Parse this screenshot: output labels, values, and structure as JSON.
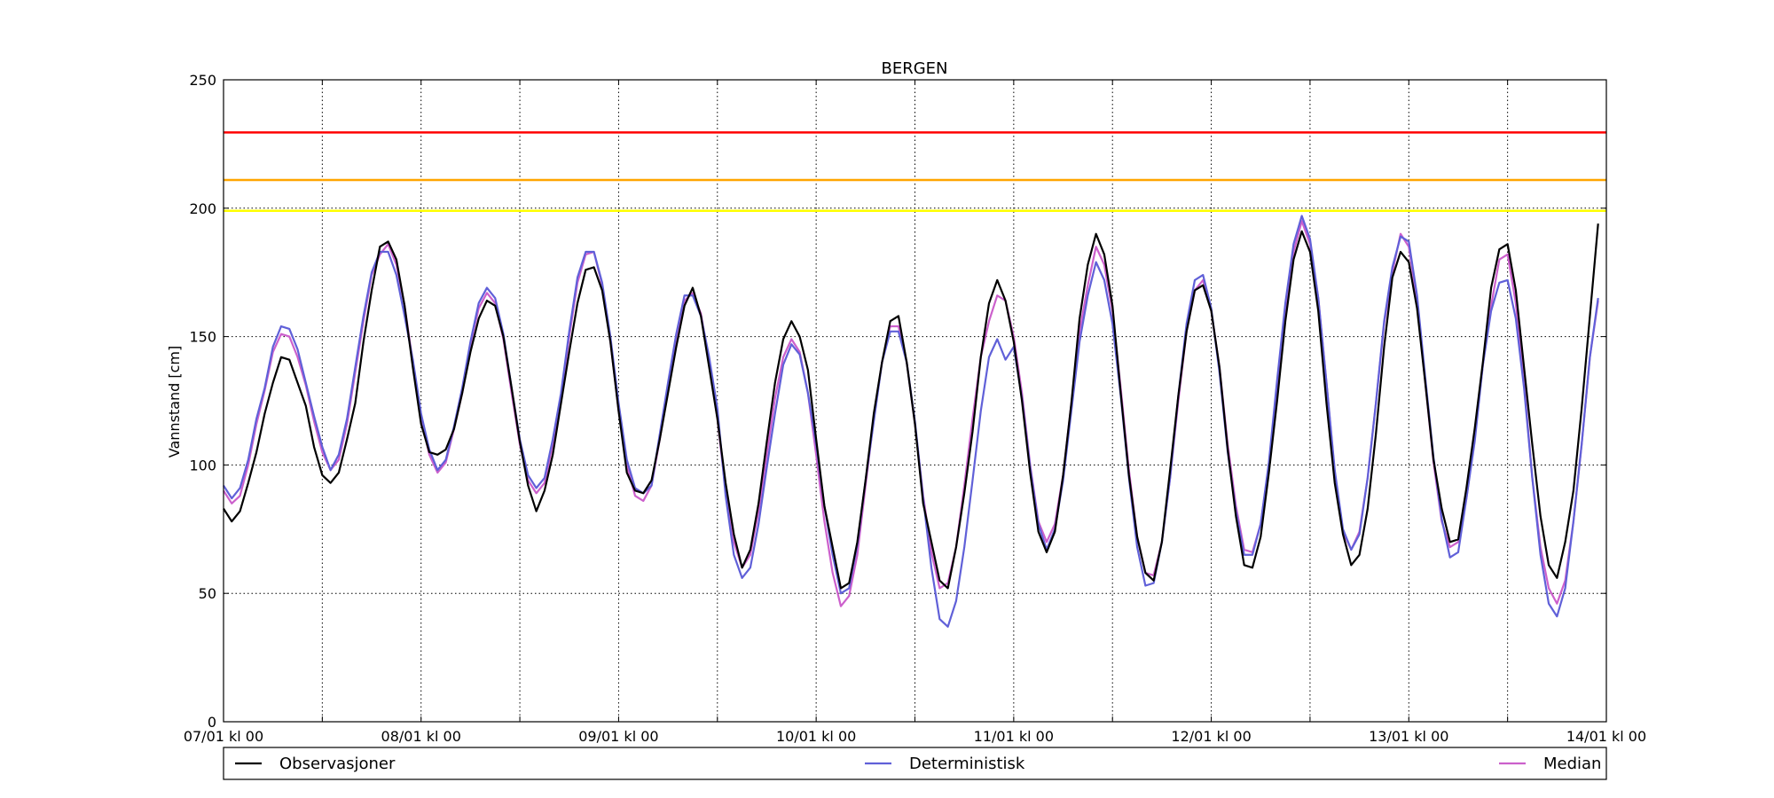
{
  "chart_data": {
    "type": "line",
    "title": "BERGEN",
    "ylabel": "Vannstand [cm]",
    "xlabel": "",
    "ylim": [
      0,
      250
    ],
    "xlim": [
      0,
      168
    ],
    "yticks": [
      0,
      50,
      100,
      150,
      200,
      250
    ],
    "ytick_labels": [
      "0",
      "50",
      "100",
      "150",
      "200",
      "250"
    ],
    "xticks": [
      0,
      24,
      48,
      72,
      96,
      120,
      144,
      168
    ],
    "xtick_labels": [
      "07/01 kl 00",
      "08/01 kl 00",
      "09/01 kl 00",
      "10/01 kl 00",
      "11/01 kl 00",
      "12/01 kl 00",
      "13/01 kl 00",
      "14/01 kl 00"
    ],
    "grid": true,
    "legend_position": "bottom",
    "x_step_hours": 1,
    "thresholds": [
      {
        "value": 229.5,
        "color": "#ff0000"
      },
      {
        "value": 211,
        "color": "#ffa500"
      },
      {
        "value": 199,
        "color": "#ffff00"
      }
    ],
    "series": [
      {
        "name": "Observasjoner",
        "color": "#000000",
        "values": [
          83,
          78,
          82,
          93,
          105,
          120,
          132,
          142,
          141,
          132,
          123,
          107,
          96,
          93,
          97,
          110,
          124,
          148,
          168,
          185,
          187,
          180,
          162,
          138,
          116,
          105,
          104,
          106,
          114,
          128,
          144,
          157,
          164,
          162,
          150,
          130,
          109,
          92,
          82,
          90,
          104,
          124,
          144,
          163,
          176,
          177,
          168,
          148,
          121,
          97,
          90,
          89,
          94,
          110,
          128,
          146,
          162,
          169,
          158,
          138,
          118,
          93,
          73,
          60,
          67,
          85,
          109,
          132,
          149,
          156,
          150,
          137,
          110,
          84,
          68,
          52,
          54,
          70,
          94,
          120,
          140,
          156,
          158,
          140,
          116,
          85,
          70,
          55,
          52,
          68,
          89,
          113,
          142,
          163,
          172,
          164,
          148,
          125,
          97,
          74,
          66,
          74,
          96,
          124,
          157,
          178,
          190,
          182,
          162,
          128,
          96,
          72,
          58,
          55,
          70,
          98,
          127,
          152,
          168,
          170,
          160,
          138,
          106,
          80,
          61,
          60,
          72,
          97,
          125,
          156,
          180,
          191,
          183,
          160,
          124,
          93,
          73,
          61,
          65,
          83,
          112,
          146,
          173,
          183,
          179,
          161,
          132,
          102,
          83,
          70,
          71,
          91,
          114,
          140,
          169,
          184,
          186,
          168,
          138,
          108,
          80,
          61,
          56,
          70,
          90,
          122,
          158,
          194
        ]
      },
      {
        "name": "Deterministisk",
        "color": "#6060d8",
        "values": [
          92,
          87,
          91,
          102,
          118,
          130,
          146,
          154,
          153,
          145,
          132,
          119,
          107,
          98,
          104,
          118,
          138,
          158,
          175,
          183,
          183,
          174,
          158,
          141,
          120,
          106,
          98,
          102,
          115,
          130,
          148,
          163,
          169,
          165,
          151,
          130,
          110,
          96,
          91,
          95,
          110,
          128,
          152,
          173,
          183,
          183,
          171,
          150,
          124,
          102,
          91,
          89,
          92,
          112,
          132,
          151,
          166,
          166,
          158,
          142,
          122,
          88,
          65,
          56,
          60,
          77,
          99,
          120,
          139,
          147,
          143,
          128,
          108,
          84,
          65,
          50,
          52,
          69,
          94,
          117,
          140,
          152,
          152,
          140,
          117,
          87,
          60,
          40,
          37,
          47,
          68,
          94,
          121,
          142,
          149,
          141,
          146,
          126,
          99,
          77,
          67,
          75,
          94,
          121,
          148,
          166,
          179,
          172,
          155,
          127,
          95,
          68,
          53,
          54,
          70,
          95,
          127,
          155,
          172,
          174,
          161,
          136,
          105,
          82,
          65,
          65,
          77,
          101,
          133,
          163,
          186,
          197,
          188,
          165,
          132,
          98,
          75,
          67,
          73,
          95,
          124,
          156,
          177,
          189,
          187,
          166,
          134,
          103,
          79,
          64,
          66,
          87,
          109,
          139,
          160,
          171,
          172,
          157,
          130,
          95,
          65,
          46,
          41,
          52,
          78,
          108,
          142,
          165
        ]
      },
      {
        "name": "Median",
        "color": "#cc60cc",
        "values": [
          90,
          85,
          88,
          100,
          116,
          129,
          144,
          151,
          150,
          142,
          131,
          117,
          105,
          98,
          102,
          116,
          136,
          156,
          174,
          182,
          186,
          178,
          162,
          140,
          118,
          104,
          97,
          101,
          114,
          128,
          147,
          161,
          167,
          163,
          149,
          128,
          108,
          94,
          89,
          93,
          108,
          126,
          150,
          171,
          182,
          183,
          170,
          148,
          121,
          100,
          88,
          86,
          92,
          110,
          130,
          150,
          164,
          167,
          159,
          140,
          118,
          90,
          70,
          60,
          65,
          82,
          104,
          126,
          142,
          149,
          144,
          128,
          104,
          78,
          58,
          45,
          49,
          65,
          92,
          118,
          140,
          154,
          154,
          140,
          116,
          88,
          66,
          52,
          54,
          68,
          92,
          118,
          142,
          156,
          166,
          164,
          150,
          128,
          100,
          78,
          70,
          77,
          96,
          124,
          152,
          170,
          185,
          178,
          160,
          130,
          98,
          72,
          58,
          57,
          70,
          95,
          125,
          152,
          168,
          172,
          160,
          138,
          108,
          84,
          67,
          66,
          77,
          100,
          130,
          160,
          183,
          195,
          186,
          165,
          132,
          97,
          74,
          67,
          74,
          95,
          124,
          155,
          175,
          190,
          185,
          164,
          132,
          101,
          78,
          68,
          70,
          87,
          111,
          139,
          162,
          180,
          182,
          163,
          132,
          95,
          68,
          52,
          46,
          55,
          78,
          108,
          142,
          164
        ]
      }
    ]
  }
}
